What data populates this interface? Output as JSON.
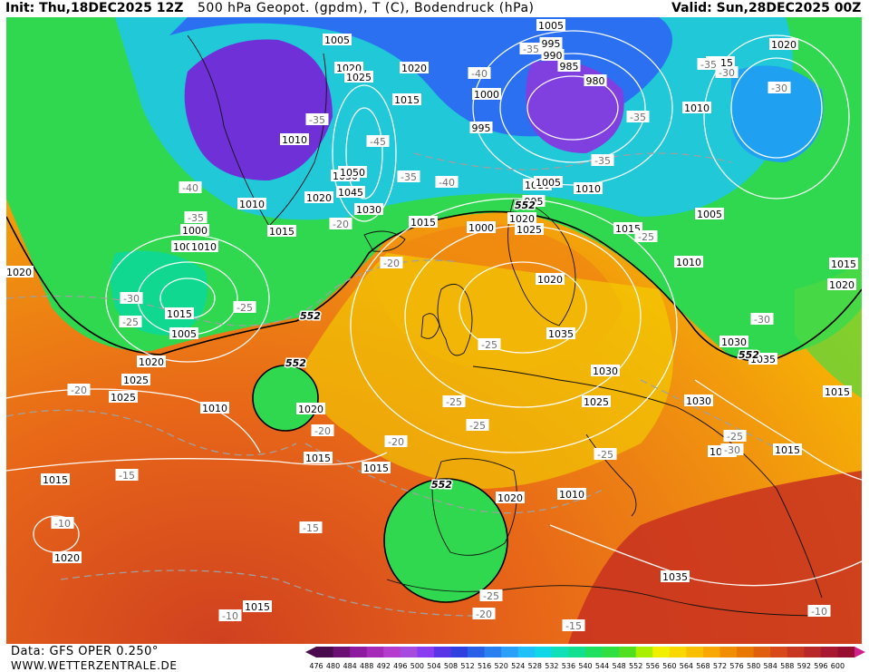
{
  "header": {
    "init": "Init: Thu,18DEC2025 12Z",
    "title": "500 hPa Geopot. (gpdm), T (C), Bodendruck (hPa)",
    "valid": "Valid: Sun,28DEC2025 00Z"
  },
  "footer": {
    "data_source": "Data: GFS OPER 0.250°",
    "website": "WWW.WETTERZENTRALE.DE"
  },
  "colorbar": {
    "labels": [
      "476",
      "480",
      "484",
      "488",
      "492",
      "496",
      "500",
      "504",
      "508",
      "512",
      "516",
      "520",
      "524",
      "528",
      "532",
      "536",
      "540",
      "544",
      "548",
      "552",
      "556",
      "560",
      "564",
      "568",
      "572",
      "576",
      "580",
      "584",
      "588",
      "592",
      "596",
      "600"
    ],
    "colors": [
      "#4a0a4e",
      "#6b0f72",
      "#8e1aa0",
      "#a52ab8",
      "#b43dd0",
      "#a54be0",
      "#8a3cf0",
      "#5a35e8",
      "#3040e0",
      "#2860e8",
      "#2a80f0",
      "#2aa0f8",
      "#20c0f8",
      "#10d8e8",
      "#10e0b8",
      "#10e090",
      "#20e060",
      "#30e040",
      "#50e020",
      "#a8f000",
      "#f0f000",
      "#f8d800",
      "#f8c000",
      "#f8a800",
      "#f08e00",
      "#e87800",
      "#e06010",
      "#d84818",
      "#c83820",
      "#b82828",
      "#a81830",
      "#980e30"
    ]
  },
  "pressure_labels": [
    "1020",
    "1005",
    "995",
    "990",
    "985",
    "980",
    "1005",
    "1020",
    "1025",
    "1030",
    "1020",
    "1015",
    "1000",
    "995",
    "1010",
    "1030",
    "1050",
    "1045",
    "1020",
    "1010",
    "1015",
    "1000",
    "1005",
    "1010",
    "1015",
    "1010",
    "1005",
    "995",
    "1000",
    "1020",
    "1025",
    "1015",
    "1010",
    "1005",
    "1010",
    "1015",
    "1020",
    "1010",
    "1015",
    "1020",
    "1015",
    "1030",
    "1035",
    "1035",
    "1020",
    "1030",
    "1025",
    "1030",
    "1020",
    "1015",
    "1010",
    "1020",
    "1015",
    "1015",
    "1020",
    "1025",
    "1025",
    "1020",
    "1015",
    "1005",
    "1010",
    "1015",
    "1020",
    "1015",
    "1035"
  ],
  "temp_labels": [
    "-35",
    "-40",
    "-35",
    "-30",
    "-30",
    "-35",
    "-35",
    "-45",
    "-40",
    "-35",
    "-30",
    "-25",
    "-25",
    "-20",
    "-35",
    "-40",
    "-35",
    "-30",
    "-25",
    "-20",
    "-20",
    "-20",
    "-25",
    "-25",
    "-25",
    "-25",
    "-25",
    "-20",
    "-15",
    "-10",
    "-15",
    "-10",
    "-15",
    "-20",
    "-25",
    "-10",
    "-30"
  ],
  "geopot_labels": [
    "552",
    "552",
    "552",
    "552",
    "552"
  ]
}
